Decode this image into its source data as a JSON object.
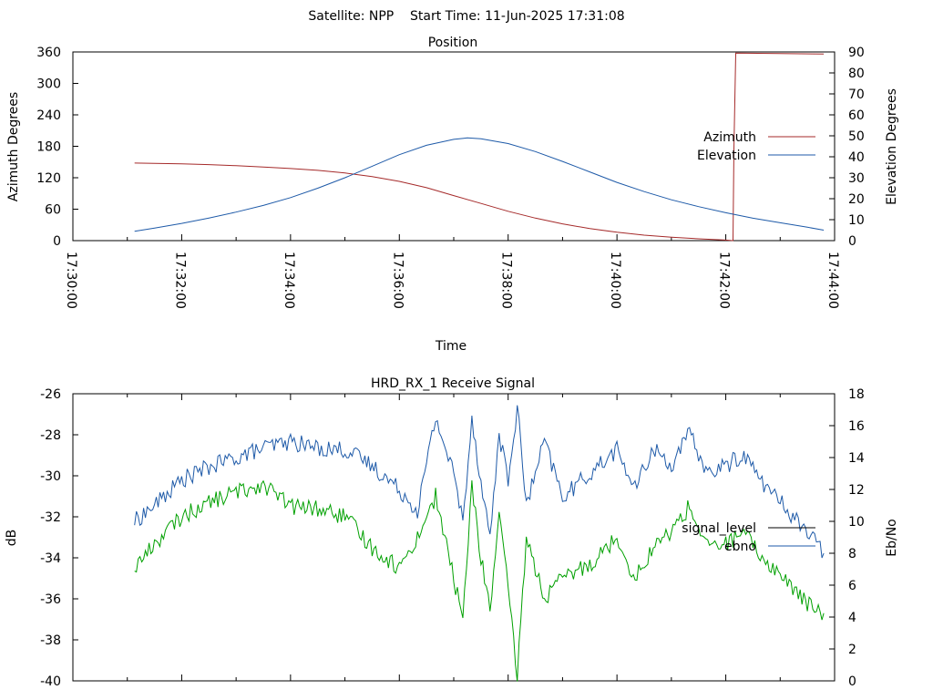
{
  "header": {
    "title": "Satellite: NPP    Start Time: 11-Jun-2025 17:31:08"
  },
  "chart_data": [
    {
      "type": "line",
      "title": "Position",
      "xlabel": "Time",
      "ylabel": "Azimuth Degrees",
      "y2label": "Elevation Degrees",
      "x_ticks": [
        "17:30:00",
        "17:32:00",
        "17:34:00",
        "17:36:00",
        "17:38:00",
        "17:40:00",
        "17:42:00",
        "17:44:00"
      ],
      "xlim": [
        "17:30:00",
        "17:44:00"
      ],
      "ylim": [
        0,
        360
      ],
      "y_ticks": [
        0,
        60,
        120,
        180,
        240,
        300,
        360
      ],
      "y2lim": [
        0,
        90
      ],
      "y2_ticks": [
        0,
        10,
        20,
        30,
        40,
        50,
        60,
        70,
        80,
        90
      ],
      "grid": false,
      "legend_position": "right",
      "series": [
        {
          "name": "Azimuth",
          "axis": "left",
          "color": "#a52a2a",
          "points": [
            [
              "17:31:08",
              148
            ],
            [
              "17:31:30",
              147.5
            ],
            [
              "17:32:00",
              146.5
            ],
            [
              "17:32:30",
              145
            ],
            [
              "17:33:00",
              143
            ],
            [
              "17:33:30",
              140.5
            ],
            [
              "17:34:00",
              137.5
            ],
            [
              "17:34:30",
              134
            ],
            [
              "17:35:00",
              129
            ],
            [
              "17:35:30",
              122
            ],
            [
              "17:36:00",
              113
            ],
            [
              "17:36:30",
              101
            ],
            [
              "17:37:00",
              86
            ],
            [
              "17:37:30",
              71
            ],
            [
              "17:38:00",
              56
            ],
            [
              "17:38:30",
              43
            ],
            [
              "17:39:00",
              32
            ],
            [
              "17:39:30",
              23
            ],
            [
              "17:40:00",
              16
            ],
            [
              "17:40:30",
              10.5
            ],
            [
              "17:41:00",
              6.5
            ],
            [
              "17:41:30",
              3.5
            ],
            [
              "17:42:00",
              1
            ],
            [
              "17:42:08",
              0
            ],
            [
              "17:42:09",
              175
            ],
            [
              "17:42:11",
              358
            ],
            [
              "17:43:00",
              357
            ],
            [
              "17:43:48",
              356
            ]
          ]
        },
        {
          "name": "Elevation",
          "axis": "right",
          "color": "#1e5aa8",
          "points": [
            [
              "17:31:08",
              4.5
            ],
            [
              "17:31:30",
              6
            ],
            [
              "17:32:00",
              8.2
            ],
            [
              "17:32:30",
              10.8
            ],
            [
              "17:33:00",
              13.6
            ],
            [
              "17:33:30",
              16.8
            ],
            [
              "17:34:00",
              20.5
            ],
            [
              "17:34:30",
              25
            ],
            [
              "17:35:00",
              30
            ],
            [
              "17:35:30",
              35.5
            ],
            [
              "17:36:00",
              41
            ],
            [
              "17:36:30",
              45.5
            ],
            [
              "17:37:00",
              48.3
            ],
            [
              "17:37:15",
              49
            ],
            [
              "17:37:30",
              48.6
            ],
            [
              "17:38:00",
              46.3
            ],
            [
              "17:38:30",
              42.5
            ],
            [
              "17:39:00",
              37.8
            ],
            [
              "17:39:30",
              32.8
            ],
            [
              "17:40:00",
              27.8
            ],
            [
              "17:40:30",
              23.4
            ],
            [
              "17:41:00",
              19.5
            ],
            [
              "17:41:30",
              16.2
            ],
            [
              "17:42:00",
              13.3
            ],
            [
              "17:42:30",
              10.7
            ],
            [
              "17:43:00",
              8.5
            ],
            [
              "17:43:30",
              6.4
            ],
            [
              "17:43:48",
              5
            ]
          ]
        }
      ]
    },
    {
      "type": "line",
      "title": "HRD_RX_1 Receive Signal",
      "xlabel": "",
      "ylabel": "dB",
      "y2label": "Eb/No",
      "xlim": [
        "17:30:00",
        "17:44:00"
      ],
      "ylim": [
        -40,
        -26
      ],
      "y_ticks": [
        -40,
        -38,
        -36,
        -34,
        -32,
        -30,
        -28,
        -26
      ],
      "y2lim": [
        0,
        18
      ],
      "y2_ticks": [
        0,
        2,
        4,
        6,
        8,
        10,
        12,
        14,
        16,
        18
      ],
      "grid": false,
      "legend_position": "right",
      "series": [
        {
          "name": "signal_level",
          "axis": "left",
          "color": "#000000",
          "points": []
        },
        {
          "name": "ebno",
          "axis": "right",
          "color": "#1e5aa8",
          "points": [
            [
              "17:31:08",
              10
            ],
            [
              "17:31:30",
              11
            ],
            [
              "17:32:00",
              12.6
            ],
            [
              "17:32:30",
              13.4
            ],
            [
              "17:33:00",
              14
            ],
            [
              "17:33:30",
              14.6
            ],
            [
              "17:34:00",
              15
            ],
            [
              "17:34:30",
              14.6
            ],
            [
              "17:35:00",
              14.5
            ],
            [
              "17:35:30",
              13.5
            ],
            [
              "17:36:00",
              12
            ],
            [
              "17:36:20",
              10.7
            ],
            [
              "17:36:40",
              16.5
            ],
            [
              "17:37:00",
              13
            ],
            [
              "17:37:10",
              10
            ],
            [
              "17:37:20",
              16.5
            ],
            [
              "17:37:30",
              12.5
            ],
            [
              "17:37:40",
              9
            ],
            [
              "17:37:50",
              15.5
            ],
            [
              "17:38:00",
              12.5
            ],
            [
              "17:38:10",
              17.2
            ],
            [
              "17:38:20",
              11
            ],
            [
              "17:38:40",
              15
            ],
            [
              "17:39:00",
              11.5
            ],
            [
              "17:39:30",
              13
            ],
            [
              "17:40:00",
              14.5
            ],
            [
              "17:40:20",
              12
            ],
            [
              "17:40:40",
              14.6
            ],
            [
              "17:41:00",
              13.5
            ],
            [
              "17:41:20",
              15.5
            ],
            [
              "17:41:40",
              13
            ],
            [
              "17:42:00",
              13.5
            ],
            [
              "17:42:20",
              14.2
            ],
            [
              "17:42:40",
              12.5
            ],
            [
              "17:43:00",
              11.2
            ],
            [
              "17:43:20",
              10
            ],
            [
              "17:43:40",
              8.6
            ],
            [
              "17:43:48",
              8
            ]
          ]
        },
        {
          "name": "",
          "axis": "left",
          "color": "#00a000",
          "points": [
            [
              "17:31:08",
              -34.5
            ],
            [
              "17:31:30",
              -33.3
            ],
            [
              "17:32:00",
              -32
            ],
            [
              "17:32:30",
              -31.3
            ],
            [
              "17:33:00",
              -30.8
            ],
            [
              "17:33:30",
              -30.4
            ],
            [
              "17:34:00",
              -31.5
            ],
            [
              "17:34:30",
              -31.6
            ],
            [
              "17:35:00",
              -32
            ],
            [
              "17:35:30",
              -33.5
            ],
            [
              "17:36:00",
              -34.5
            ],
            [
              "17:36:20",
              -33
            ],
            [
              "17:36:40",
              -31
            ],
            [
              "17:37:00",
              -35
            ],
            [
              "17:37:10",
              -37
            ],
            [
              "17:37:20",
              -30.5
            ],
            [
              "17:37:30",
              -34
            ],
            [
              "17:37:40",
              -36.5
            ],
            [
              "17:37:50",
              -32
            ],
            [
              "17:38:00",
              -35.5
            ],
            [
              "17:38:10",
              -39.8
            ],
            [
              "17:38:20",
              -33
            ],
            [
              "17:38:40",
              -36
            ],
            [
              "17:39:00",
              -35
            ],
            [
              "17:39:30",
              -34.3
            ],
            [
              "17:40:00",
              -33
            ],
            [
              "17:40:20",
              -35
            ],
            [
              "17:40:40",
              -33.5
            ],
            [
              "17:41:00",
              -32.7
            ],
            [
              "17:41:20",
              -31.5
            ],
            [
              "17:41:40",
              -33.5
            ],
            [
              "17:42:00",
              -33.3
            ],
            [
              "17:42:20",
              -32.8
            ],
            [
              "17:42:40",
              -34
            ],
            [
              "17:43:00",
              -34.8
            ],
            [
              "17:43:20",
              -35.8
            ],
            [
              "17:43:40",
              -36.6
            ],
            [
              "17:43:48",
              -36.7
            ]
          ]
        }
      ]
    }
  ]
}
